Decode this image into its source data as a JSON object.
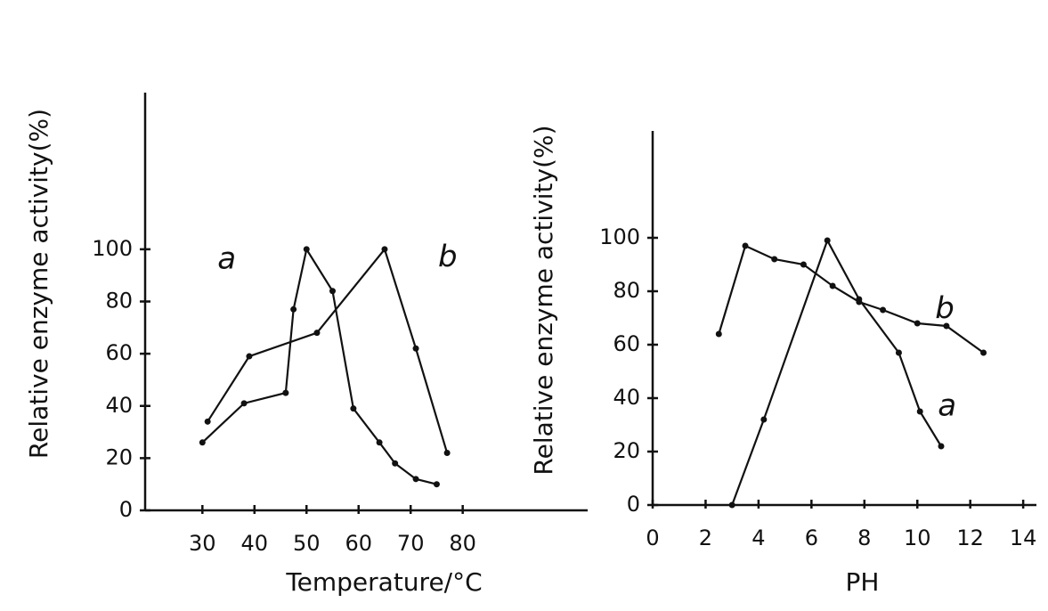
{
  "chart_data": [
    {
      "type": "line",
      "x_label": "Temperature/°C",
      "y_label": "Relative enzyme activity(%)",
      "xlim": [
        19,
        104
      ],
      "xticks": [
        30,
        40,
        50,
        60,
        70,
        80
      ],
      "ylim": [
        0,
        160
      ],
      "yticks": [
        0,
        20,
        40,
        60,
        80,
        100
      ],
      "series": [
        {
          "name": "a",
          "color": "#111111",
          "x": [
            30,
            38,
            46,
            47.5,
            50,
            55,
            59,
            64,
            67,
            71,
            75
          ],
          "values": [
            26,
            41,
            45,
            77,
            100,
            84,
            39,
            26,
            18,
            12,
            10
          ]
        },
        {
          "name": "b",
          "color": "#111111",
          "x": [
            31,
            39,
            52,
            65,
            71,
            77
          ],
          "values": [
            34,
            59,
            68,
            100,
            62,
            22
          ]
        }
      ]
    },
    {
      "type": "line",
      "x_label": "PH",
      "y_label": "Relative enzyme activity(%)",
      "xlim": [
        0,
        14.5
      ],
      "xticks": [
        0,
        2,
        4,
        6,
        8,
        10,
        12,
        14
      ],
      "ylim": [
        0,
        140
      ],
      "yticks": [
        0,
        20,
        40,
        60,
        80,
        100
      ],
      "series": [
        {
          "name": "a",
          "color": "#111111",
          "x": [
            3,
            4.2,
            6.6,
            7.8,
            9.3,
            10.1,
            10.9
          ],
          "values": [
            0,
            32,
            99,
            77,
            57,
            35,
            22
          ]
        },
        {
          "name": "b",
          "color": "#111111",
          "x": [
            2.5,
            3.5,
            4.6,
            5.7,
            6.8,
            7.8,
            8.7,
            10,
            11.1,
            12.5
          ],
          "values": [
            64,
            97,
            92,
            90,
            82,
            76,
            73,
            68,
            67,
            57
          ]
        }
      ]
    }
  ]
}
